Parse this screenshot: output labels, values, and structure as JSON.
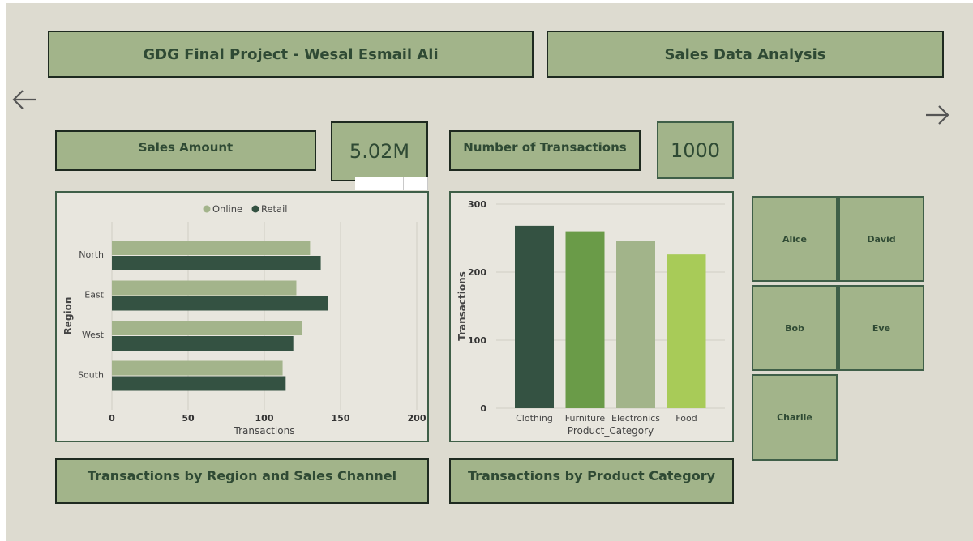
{
  "header": {
    "title_left": "GDG Final Project - Wesal Esmail Ali",
    "title_right": "Sales Data Analysis"
  },
  "kpis": {
    "sales_label": "Sales Amount",
    "sales_value": "5.02M",
    "transactions_label": "Number of Transactions",
    "transactions_value": "1000"
  },
  "nav": {
    "back_icon": "arrow-left-icon",
    "forward_icon": "arrow-right-icon"
  },
  "captions": {
    "region_chart": "Transactions by Region and Sales Channel",
    "category_chart": "Transactions by Product Category"
  },
  "salespeople": [
    "Alice",
    "David",
    "Bob",
    "Eve",
    "Charlie"
  ],
  "colors": {
    "background": "#dddbd0",
    "box_fill": "#a2b48a",
    "dark_green": "#345242",
    "online": "#a3b48b",
    "retail": "#345242",
    "furniture": "#6a9b48",
    "electronics": "#a2b48a",
    "food": "#a8cb58"
  },
  "chart_data": [
    {
      "type": "bar",
      "orientation": "horizontal",
      "categories": [
        "North",
        "East",
        "West",
        "South"
      ],
      "series": [
        {
          "name": "Online",
          "values": [
            130,
            121,
            125,
            112
          ]
        },
        {
          "name": "Retail",
          "values": [
            137,
            142,
            119,
            114
          ]
        }
      ],
      "xlabel": "Transactions",
      "ylabel": "Region",
      "xlim": [
        0,
        200
      ],
      "xticks": [
        "0",
        "50",
        "100",
        "150",
        "200"
      ],
      "legend": "top-center",
      "grid": true
    },
    {
      "type": "bar",
      "categories": [
        "Clothing",
        "Furniture",
        "Electronics",
        "Food"
      ],
      "values": [
        268,
        260,
        246,
        226
      ],
      "xlabel": "Product_Category",
      "ylabel": "Transactions",
      "ylim": [
        0,
        300
      ],
      "yticks": [
        "0",
        "100",
        "200",
        "300"
      ],
      "grid": true
    }
  ]
}
